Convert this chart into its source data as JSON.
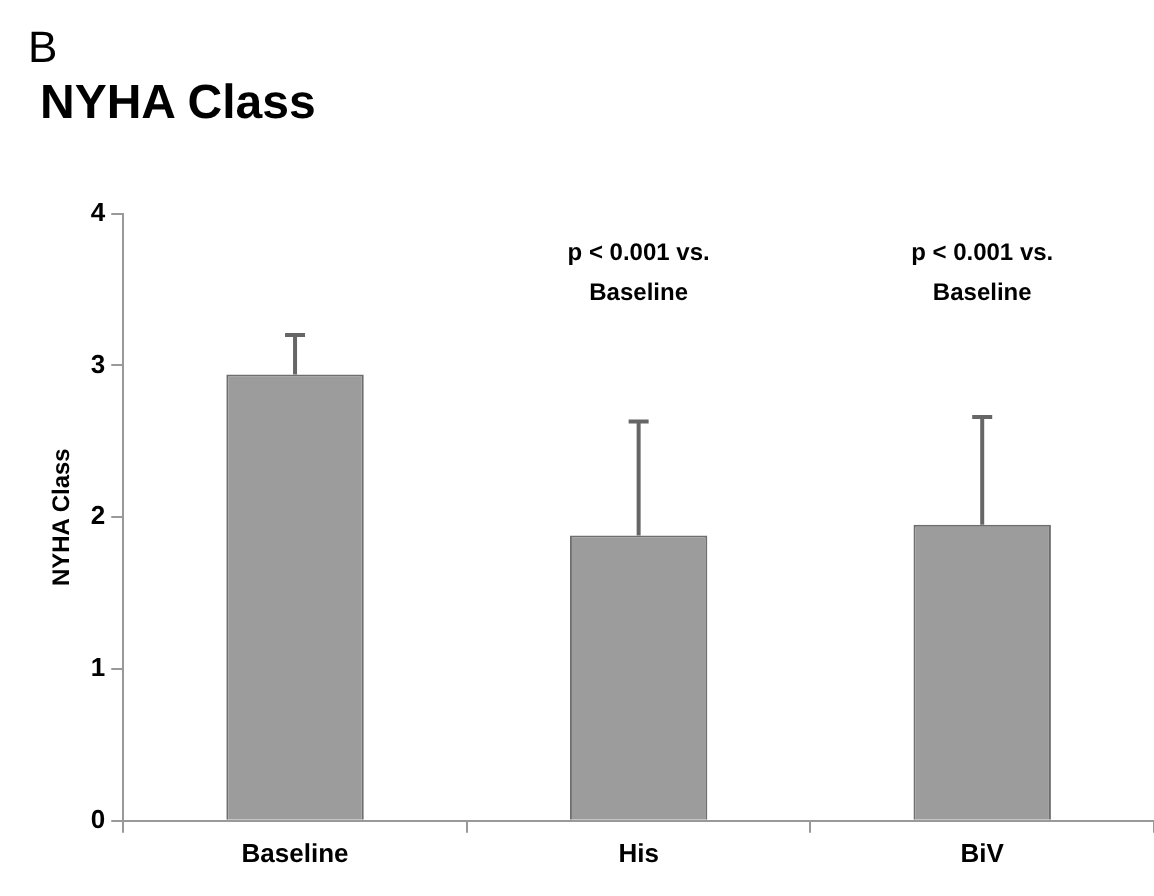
{
  "chart_data": {
    "type": "bar",
    "title": "NYHA Class",
    "ylabel": "NYHA Class",
    "categories": [
      "Baseline",
      "His",
      "BiV"
    ],
    "values": [
      2.94,
      1.88,
      1.95
    ],
    "errors": [
      [
        2.94,
        3.2
      ],
      [
        1.88,
        2.63
      ],
      [
        1.95,
        2.66
      ]
    ],
    "color": "#9c9c9c",
    "ylim": [
      0,
      4
    ],
    "yticks": [
      0,
      1,
      2,
      3,
      4
    ],
    "grid": false,
    "legend": false,
    "annotations": [
      "B",
      "p < 0.001 vs. Baseline",
      "p < 0.001 vs. Baseline"
    ]
  }
}
